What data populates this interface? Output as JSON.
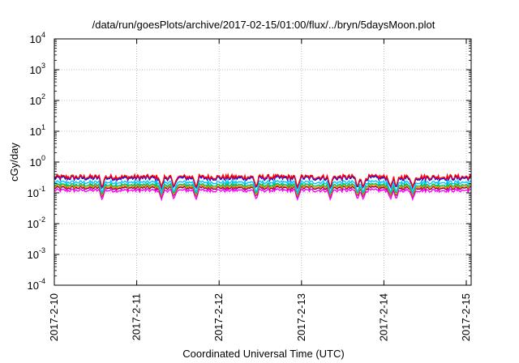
{
  "chart_data": {
    "type": "line",
    "title": "/data/run/goesPlots/archive/2017-02-15/01:00/flux/../bryn/5daysMoon.plot",
    "xlabel": "Coordinated Universal Time (UTC)",
    "ylabel": "cGy/day",
    "yscale": "log",
    "ylim": [
      0.0001,
      10000
    ],
    "xlim": [
      "2017-02-10 00:00",
      "2017-02-15 01:00"
    ],
    "x_ticks": [
      "2017-2-10",
      "2017-2-11",
      "2017-2-12",
      "2017-2-13",
      "2017-2-14",
      "2017-2-15"
    ],
    "y_ticks": [
      {
        "base": "10",
        "exp": "-4"
      },
      {
        "base": "10",
        "exp": "-3"
      },
      {
        "base": "10",
        "exp": "-2"
      },
      {
        "base": "10",
        "exp": "-1"
      },
      {
        "base": "10",
        "exp": "0"
      },
      {
        "base": "10",
        "exp": "1"
      },
      {
        "base": "10",
        "exp": "2"
      },
      {
        "base": "10",
        "exp": "3"
      },
      {
        "base": "10",
        "exp": "4"
      }
    ],
    "grid": true,
    "legend": "none",
    "series": [
      {
        "color": "#ff0000",
        "typical_value": 0.33,
        "dip_min": 0.15
      },
      {
        "color": "#0000ff",
        "typical_value": 0.3,
        "dip_min": 0.14
      },
      {
        "color": "#00c8ff",
        "typical_value": 0.22,
        "dip_min": 0.1
      },
      {
        "color": "#00c060",
        "typical_value": 0.18,
        "dip_min": 0.09
      },
      {
        "color": "#ff8c00",
        "typical_value": 0.16,
        "dip_min": 0.08
      },
      {
        "color": "#800040",
        "typical_value": 0.145,
        "dip_min": 0.075
      },
      {
        "color": "#ff00ff",
        "typical_value": 0.12,
        "dip_min": 0.06
      }
    ],
    "dip_days": [
      0.58,
      1.3,
      1.45,
      1.72,
      2.45,
      2.95,
      3.35,
      3.68,
      3.75,
      4.08,
      4.15,
      4.35
    ]
  }
}
